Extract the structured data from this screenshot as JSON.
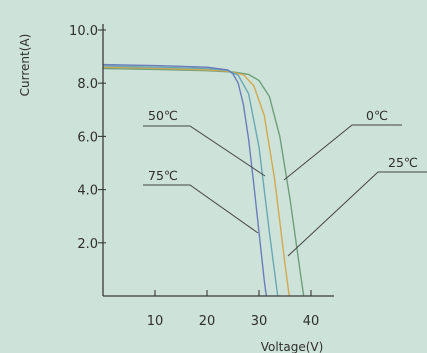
{
  "chart_data": {
    "type": "line",
    "title": "",
    "xlabel": "Voltage(V)",
    "ylabel": "Current(A)",
    "xlim": [
      0,
      45
    ],
    "ylim": [
      0,
      10.5
    ],
    "xticks": [
      10,
      20,
      30,
      40
    ],
    "yticks": [
      2.0,
      4.0,
      6.0,
      8.0,
      10.0
    ],
    "xtick_labels": [
      "10",
      "20",
      "30",
      "40"
    ],
    "ytick_labels": [
      "2.0",
      "4.0",
      "6.0",
      "8.0",
      "10.0"
    ],
    "grid": false,
    "series": [
      {
        "name": "0℃",
        "color": "#6e9f7a",
        "x": [
          0,
          10,
          20,
          25,
          28,
          30,
          32,
          34,
          36,
          37,
          38,
          38.6
        ],
        "y": [
          8.55,
          8.52,
          8.47,
          8.42,
          8.33,
          8.1,
          7.5,
          6.0,
          3.6,
          2.2,
          0.8,
          0
        ]
      },
      {
        "name": "25℃",
        "color": "#d2a94e",
        "x": [
          0,
          10,
          20,
          24,
          27,
          29,
          31,
          33,
          34,
          35,
          35.8
        ],
        "y": [
          8.6,
          8.56,
          8.5,
          8.45,
          8.32,
          7.9,
          6.8,
          4.4,
          2.8,
          1.2,
          0
        ]
      },
      {
        "name": "50℃",
        "color": "#6aa8b6",
        "x": [
          0,
          10,
          20,
          24,
          26,
          28,
          30,
          31,
          32,
          33,
          33.6
        ],
        "y": [
          8.65,
          8.6,
          8.55,
          8.48,
          8.3,
          7.6,
          5.6,
          4.0,
          2.4,
          0.9,
          0
        ]
      },
      {
        "name": "75℃",
        "color": "#6b7dbb",
        "x": [
          0,
          10,
          20,
          24,
          25,
          26,
          27,
          28,
          29,
          30,
          31,
          31.4
        ],
        "y": [
          8.7,
          8.66,
          8.6,
          8.5,
          8.35,
          8.0,
          7.2,
          5.9,
          4.2,
          2.4,
          0.6,
          0
        ]
      }
    ],
    "annotations": [
      {
        "label": "50℃"
      },
      {
        "label": "0℃"
      },
      {
        "label": "75℃"
      },
      {
        "label": "25℃"
      }
    ]
  }
}
